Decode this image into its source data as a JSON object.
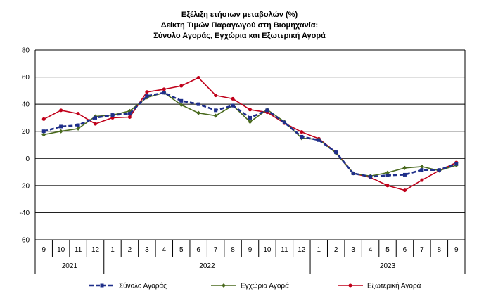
{
  "chart_data": {
    "type": "line",
    "title_lines": [
      "Εξέλιξη ετήσιων μεταβολών (%)",
      "Δείκτη Τιμών Παραγωγού στη Βιομηχανία:",
      "Σύνολο Αγοράς, Εγχώρια και Εξωτερική Αγορά"
    ],
    "categories": [
      "9",
      "10",
      "11",
      "12",
      "1",
      "2",
      "3",
      "4",
      "5",
      "6",
      "7",
      "8",
      "9",
      "10",
      "11",
      "12",
      "1",
      "2",
      "3",
      "4",
      "5",
      "6",
      "7",
      "8",
      "9"
    ],
    "year_groups": [
      {
        "label": "2021",
        "start": 0,
        "end": 3
      },
      {
        "label": "2022",
        "start": 4,
        "end": 15
      },
      {
        "label": "2023",
        "start": 16,
        "end": 24
      }
    ],
    "ylim": [
      -60,
      80
    ],
    "yticks": [
      "80",
      "60",
      "40",
      "20",
      "0",
      "-20",
      "-40",
      "-60"
    ],
    "grid": true,
    "legend_position": "bottom",
    "series": [
      {
        "name": "Σύνολο Αγοράς",
        "color": "#1f2f8a",
        "style": "dashed",
        "marker": "square",
        "values": [
          20,
          23.5,
          24.5,
          30,
          32,
          33,
          46,
          48.5,
          42.5,
          40,
          35.5,
          39,
          30,
          35.5,
          26.5,
          16,
          13.5,
          4.5,
          -11,
          -13.5,
          -12.5,
          -12,
          -8.5,
          -8.5,
          -4
        ]
      },
      {
        "name": "Εγχώρια Αγορά",
        "color": "#4a6a1e",
        "style": "solid",
        "marker": "diamond",
        "values": [
          17.5,
          20,
          22,
          31,
          32,
          35,
          45,
          48.5,
          39.5,
          33.5,
          31.5,
          39,
          27,
          36,
          27,
          15,
          14,
          4,
          -11,
          -13,
          -10.5,
          -7,
          -6,
          -9,
          -5
        ]
      },
      {
        "name": "Εξωτερική Αγορά",
        "color": "#c0001a",
        "style": "solid",
        "marker": "circle",
        "values": [
          29,
          35.5,
          33,
          25.5,
          30,
          30.5,
          49,
          51,
          53.5,
          59.5,
          46.5,
          44,
          36,
          34,
          26,
          19.5,
          14.5,
          4.5,
          -11,
          -14,
          -20,
          -23.5,
          -16,
          -9,
          -3
        ]
      }
    ]
  }
}
